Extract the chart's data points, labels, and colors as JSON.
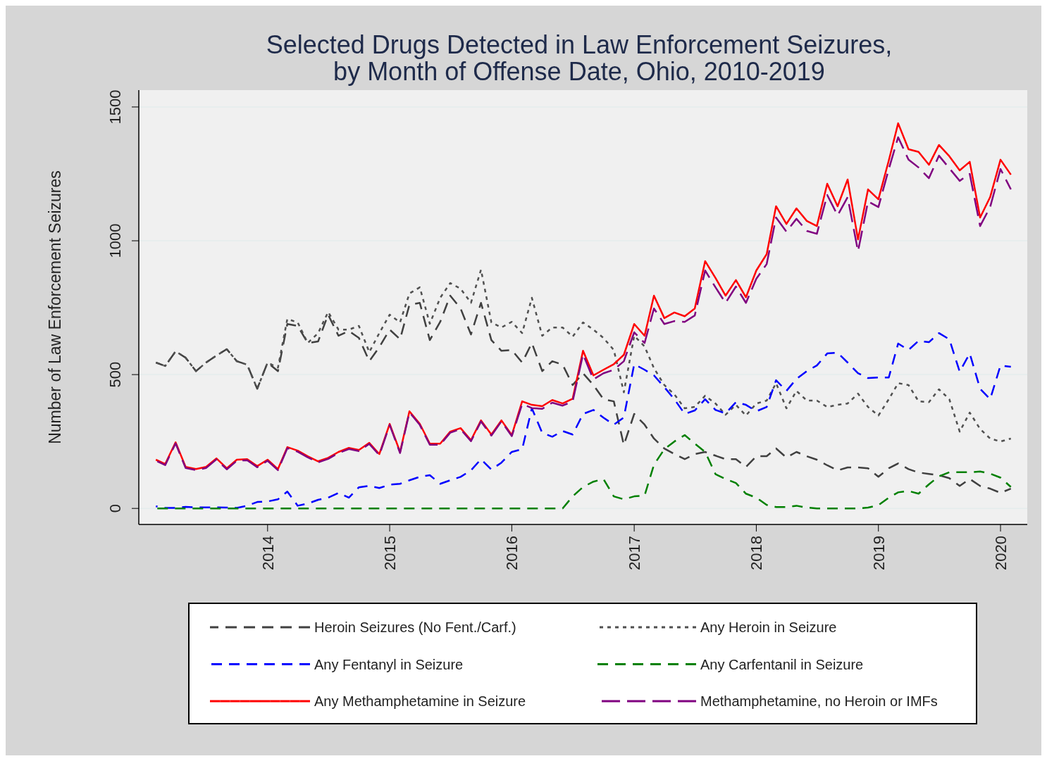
{
  "chart_data": {
    "type": "line",
    "title": "Selected Drugs Detected in Law Enforcement Seizures,\nby Month of Offense Date, Ohio, 2010-2019",
    "ylabel": "Number of Law Enforcement Seizures",
    "x": [
      "2013-02",
      "2013-03",
      "2013-04",
      "2013-05",
      "2013-06",
      "2013-07",
      "2013-08",
      "2013-09",
      "2013-10",
      "2013-11",
      "2013-12",
      "2014-01",
      "2014-02",
      "2014-03",
      "2014-04",
      "2014-05",
      "2014-06",
      "2014-07",
      "2014-08",
      "2014-09",
      "2014-10",
      "2014-11",
      "2014-12",
      "2015-01",
      "2015-02",
      "2015-03",
      "2015-04",
      "2015-05",
      "2015-06",
      "2015-07",
      "2015-08",
      "2015-09",
      "2015-10",
      "2015-11",
      "2015-12",
      "2016-01",
      "2016-02",
      "2016-03",
      "2016-04",
      "2016-05",
      "2016-06",
      "2016-07",
      "2016-08",
      "2016-09",
      "2016-10",
      "2016-11",
      "2016-12",
      "2017-01",
      "2017-02",
      "2017-03",
      "2017-04",
      "2017-05",
      "2017-06",
      "2017-07",
      "2017-08",
      "2017-09",
      "2017-10",
      "2017-11",
      "2017-12",
      "2018-01",
      "2018-02",
      "2018-03",
      "2018-04",
      "2018-05",
      "2018-06",
      "2018-07",
      "2018-08",
      "2018-09",
      "2018-10",
      "2018-11",
      "2018-12",
      "2019-01",
      "2019-02",
      "2019-03",
      "2019-04",
      "2019-05",
      "2019-06",
      "2019-07",
      "2019-08",
      "2019-09",
      "2019-10",
      "2019-11",
      "2019-12",
      "2020-01",
      "2020-02"
    ],
    "xlim": [
      "2012-12-12",
      "2020-03-21"
    ],
    "xticks": [
      "2014",
      "2015",
      "2016",
      "2017",
      "2018",
      "2019",
      "2020"
    ],
    "ylim": [
      -60,
      1563
    ],
    "yticks": [
      0,
      500,
      1000,
      1500
    ],
    "grid": "y",
    "legend": "bottom",
    "series": [
      {
        "name": "Heroin Seizures (No Fent./Carf.)",
        "color": "#404040",
        "line_style": "dashed",
        "values": [
          545,
          532,
          587,
          563,
          513,
          545,
          571,
          595,
          550,
          537,
          447,
          545,
          513,
          689,
          682,
          618,
          624,
          724,
          645,
          663,
          637,
          550,
          603,
          668,
          632,
          761,
          768,
          629,
          697,
          795,
          747,
          650,
          768,
          629,
          589,
          592,
          545,
          618,
          513,
          550,
          537,
          461,
          505,
          461,
          408,
          400,
          237,
          353,
          313,
          261,
          224,
          203,
          184,
          203,
          211,
          197,
          184,
          184,
          155,
          195,
          195,
          224,
          190,
          211,
          195,
          182,
          161,
          142,
          153,
          153,
          150,
          118,
          150,
          168,
          147,
          134,
          129,
          124,
          113,
          84,
          110,
          84,
          74,
          58,
          74
        ]
      },
      {
        "name": "Any Heroin in Seizure",
        "color": "#505050",
        "line_style": "dotted",
        "values": [
          545,
          532,
          587,
          563,
          513,
          545,
          571,
          595,
          550,
          537,
          447,
          545,
          526,
          708,
          695,
          618,
          655,
          734,
          668,
          668,
          682,
          584,
          655,
          724,
          695,
          803,
          826,
          690,
          787,
          842,
          821,
          768,
          892,
          695,
          676,
          697,
          655,
          787,
          645,
          676,
          676,
          642,
          695,
          668,
          637,
          592,
          434,
          645,
          605,
          524,
          461,
          426,
          374,
          379,
          421,
          392,
          350,
          387,
          347,
          392,
          403,
          468,
          374,
          439,
          403,
          403,
          379,
          387,
          392,
          429,
          379,
          347,
          408,
          468,
          461,
          400,
          397,
          445,
          408,
          287,
          358,
          297,
          261,
          250,
          261
        ]
      },
      {
        "name": "Any Fentanyl in Seizure",
        "color": "#0000ff",
        "line_style": "dashed",
        "values": [
          8,
          2,
          2,
          6,
          4,
          4,
          4,
          3,
          2,
          10,
          24,
          26,
          34,
          63,
          10,
          18,
          32,
          40,
          58,
          40,
          79,
          84,
          76,
          89,
          92,
          105,
          118,
          124,
          92,
          105,
          118,
          142,
          184,
          145,
          171,
          211,
          221,
          374,
          282,
          268,
          289,
          276,
          353,
          368,
          339,
          313,
          340,
          539,
          518,
          497,
          453,
          408,
          353,
          366,
          408,
          368,
          355,
          397,
          387,
          363,
          379,
          479,
          439,
          484,
          513,
          534,
          579,
          582,
          545,
          505,
          487,
          489,
          489,
          616,
          592,
          626,
          621,
          655,
          632,
          511,
          579,
          447,
          408,
          534,
          529
        ]
      },
      {
        "name": "Any Carfentanil in Seizure",
        "color": "#008000",
        "line_style": "dashed",
        "values": [
          0,
          0,
          0,
          0,
          0,
          0,
          0,
          0,
          0,
          0,
          0,
          0,
          0,
          0,
          0,
          0,
          0,
          0,
          0,
          0,
          0,
          0,
          0,
          0,
          0,
          0,
          0,
          0,
          0,
          0,
          0,
          0,
          0,
          0,
          0,
          0,
          0,
          0,
          0,
          0,
          0,
          45,
          80,
          100,
          110,
          45,
          34,
          45,
          48,
          163,
          221,
          250,
          274,
          242,
          211,
          128,
          110,
          95,
          55,
          40,
          13,
          5,
          5,
          10,
          3,
          0,
          0,
          0,
          0,
          0,
          3,
          12,
          40,
          60,
          65,
          55,
          90,
          120,
          135,
          135,
          135,
          138,
          130,
          115,
          80
        ]
      },
      {
        "name": "Any Methamphetamine in Seizure",
        "color": "#ff0000",
        "line_style": "solid",
        "values": [
          182,
          166,
          247,
          155,
          147,
          155,
          187,
          150,
          182,
          184,
          158,
          182,
          147,
          229,
          216,
          195,
          176,
          189,
          211,
          226,
          218,
          245,
          203,
          316,
          211,
          363,
          316,
          242,
          242,
          287,
          300,
          255,
          329,
          276,
          329,
          274,
          400,
          387,
          382,
          405,
          392,
          410,
          589,
          497,
          518,
          539,
          574,
          689,
          645,
          795,
          711,
          732,
          718,
          747,
          924,
          861,
          795,
          853,
          789,
          889,
          950,
          1129,
          1063,
          1121,
          1074,
          1055,
          1213,
          1129,
          1229,
          1005,
          1192,
          1155,
          1300,
          1439,
          1342,
          1332,
          1284,
          1358,
          1316,
          1263,
          1295,
          1087,
          1163,
          1303,
          1247
        ]
      },
      {
        "name": "Methamphetamine, no Heroin or IMFs",
        "color": "#800080",
        "line_style": "dashed",
        "values": [
          178,
          162,
          243,
          151,
          143,
          151,
          183,
          146,
          178,
          180,
          154,
          178,
          143,
          225,
          212,
          191,
          172,
          185,
          207,
          222,
          214,
          241,
          199,
          312,
          207,
          359,
          312,
          238,
          238,
          283,
          296,
          251,
          325,
          272,
          325,
          270,
          390,
          375,
          372,
          395,
          384,
          400,
          576,
          482,
          505,
          518,
          550,
          658,
          618,
          747,
          689,
          700,
          697,
          721,
          889,
          826,
          768,
          829,
          768,
          858,
          913,
          1087,
          1034,
          1082,
          1037,
          1026,
          1171,
          1095,
          1163,
          961,
          1147,
          1126,
          1268,
          1387,
          1303,
          1274,
          1234,
          1318,
          1271,
          1224,
          1250,
          1055,
          1126,
          1268,
          1192
        ]
      }
    ]
  }
}
